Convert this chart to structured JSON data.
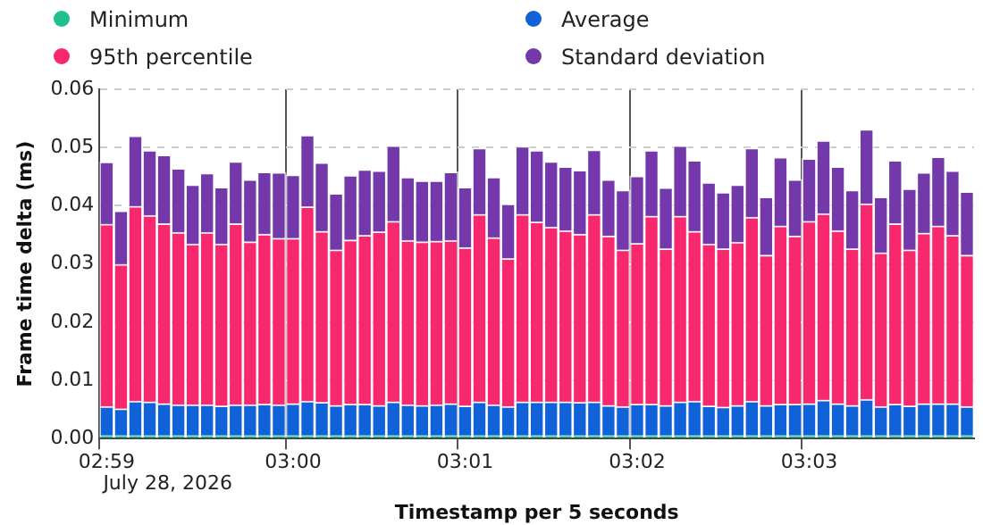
{
  "chart_data": {
    "type": "bar",
    "stacked": true,
    "xlabel": "Timestamp per 5 seconds",
    "ylabel": "Frame time delta (ms)",
    "categories": [
      "02:59",
      null,
      null,
      null,
      null,
      null,
      null,
      null,
      null,
      null,
      null,
      null,
      null,
      "03:00",
      null,
      null,
      null,
      null,
      null,
      null,
      null,
      null,
      null,
      null,
      null,
      "03:01",
      null,
      null,
      null,
      null,
      null,
      null,
      null,
      null,
      null,
      null,
      null,
      "03:02",
      null,
      null,
      null,
      null,
      null,
      null,
      null,
      null,
      null,
      null,
      null,
      "03:03",
      null,
      null,
      null,
      null,
      null,
      null,
      null,
      null,
      null,
      null,
      null
    ],
    "series": [
      {
        "name": "Minimum",
        "color": "#1fbf8f",
        "values": [
          0.0005,
          0.0005,
          0.0005,
          0.0005,
          0.0005,
          0.0005,
          0.0005,
          0.0005,
          0.0005,
          0.0005,
          0.0005,
          0.0005,
          0.0005,
          0.0005,
          0.0005,
          0.0005,
          0.0005,
          0.0005,
          0.0005,
          0.0005,
          0.0005,
          0.0005,
          0.0005,
          0.0005,
          0.0005,
          0.0005,
          0.0005,
          0.0005,
          0.0005,
          0.0005,
          0.0005,
          0.0005,
          0.0005,
          0.0005,
          0.0005,
          0.0005,
          0.0005,
          0.0005,
          0.0005,
          0.0005,
          0.0005,
          0.0005,
          0.0005,
          0.0005,
          0.0005,
          0.0005,
          0.0005,
          0.0005,
          0.0005,
          0.0005,
          0.0005,
          0.0005,
          0.0005,
          0.0005,
          0.0005,
          0.0005,
          0.0005,
          0.0005,
          0.0005,
          0.0005,
          0.0005
        ]
      },
      {
        "name": "Average",
        "color": "#0f62d8",
        "values": [
          0.005,
          0.0046,
          0.0059,
          0.0058,
          0.0055,
          0.0053,
          0.0053,
          0.0053,
          0.0051,
          0.0053,
          0.0053,
          0.0054,
          0.0053,
          0.0055,
          0.0059,
          0.0057,
          0.0052,
          0.0054,
          0.0054,
          0.0052,
          0.0058,
          0.0053,
          0.0052,
          0.0053,
          0.0055,
          0.0051,
          0.0058,
          0.0053,
          0.005,
          0.0058,
          0.0058,
          0.0058,
          0.0058,
          0.0057,
          0.0058,
          0.0052,
          0.005,
          0.0054,
          0.0054,
          0.0052,
          0.0058,
          0.0059,
          0.0051,
          0.0049,
          0.0052,
          0.0059,
          0.0052,
          0.0054,
          0.0054,
          0.0055,
          0.0061,
          0.0055,
          0.0052,
          0.0062,
          0.005,
          0.0054,
          0.0051,
          0.0055,
          0.0055,
          0.0055,
          0.005
        ]
      },
      {
        "name": "95th percentile",
        "color": "#f7286e",
        "values": [
          0.0313,
          0.0248,
          0.0335,
          0.032,
          0.0309,
          0.0296,
          0.0276,
          0.0296,
          0.0278,
          0.0311,
          0.028,
          0.0292,
          0.0286,
          0.0284,
          0.0334,
          0.0294,
          0.0267,
          0.0282,
          0.029,
          0.0298,
          0.031,
          0.0282,
          0.0281,
          0.0281,
          0.028,
          0.0272,
          0.0322,
          0.0287,
          0.0254,
          0.0322,
          0.0309,
          0.03,
          0.0294,
          0.0289,
          0.0322,
          0.0291,
          0.0269,
          0.0276,
          0.0323,
          0.0269,
          0.0319,
          0.0292,
          0.0278,
          0.0272,
          0.028,
          0.0316,
          0.0258,
          0.0306,
          0.0289,
          0.0313,
          0.032,
          0.0297,
          0.0269,
          0.0336,
          0.0264,
          0.031,
          0.0268,
          0.0293,
          0.0305,
          0.0289,
          0.026
        ]
      },
      {
        "name": "Standard deviation",
        "color": "#7339ab",
        "values": [
          0.0107,
          0.0092,
          0.0121,
          0.0112,
          0.0118,
          0.011,
          0.0102,
          0.0102,
          0.0098,
          0.0107,
          0.0107,
          0.0107,
          0.0113,
          0.0109,
          0.0123,
          0.0118,
          0.0097,
          0.0111,
          0.0113,
          0.0105,
          0.013,
          0.0109,
          0.0105,
          0.0104,
          0.0118,
          0.0104,
          0.0114,
          0.0104,
          0.0094,
          0.0117,
          0.0123,
          0.0113,
          0.011,
          0.011,
          0.0111,
          0.0097,
          0.0103,
          0.0116,
          0.0113,
          0.0105,
          0.0121,
          0.0122,
          0.0106,
          0.0097,
          0.0099,
          0.0119,
          0.01,
          0.0118,
          0.0097,
          0.0108,
          0.0126,
          0.011,
          0.0101,
          0.0128,
          0.0096,
          0.0109,
          0.0105,
          0.0104,
          0.0119,
          0.0111,
          0.0109
        ]
      }
    ],
    "ylim": [
      0,
      0.06
    ],
    "yticks": [
      {
        "value": 0,
        "label": "0.00"
      },
      0.01,
      0.02,
      0.03,
      0.04,
      0.05,
      0.06
    ],
    "grid": true,
    "legend": "top",
    "annotations": [
      "July 28, 2026"
    ]
  }
}
